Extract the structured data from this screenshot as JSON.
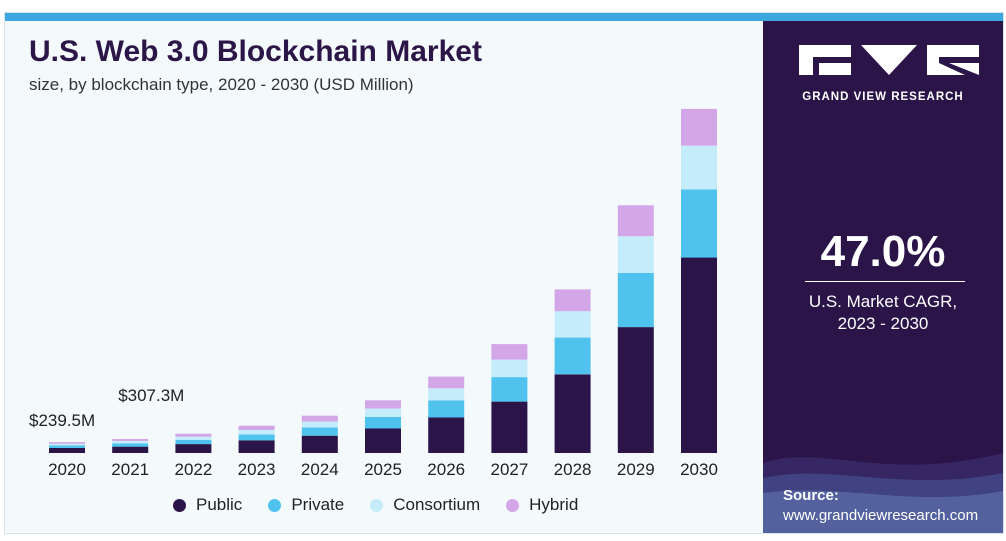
{
  "chart_data": {
    "type": "bar",
    "stacked": true,
    "title": "U.S. Web 3.0 Blockchain Market",
    "subtitle": "size, by blockchain type, 2020 - 2030 (USD Million)",
    "categories": [
      "2020",
      "2021",
      "2022",
      "2023",
      "2024",
      "2025",
      "2026",
      "2027",
      "2028",
      "2029",
      "2030"
    ],
    "series": [
      {
        "name": "Public",
        "color": "#2a1448",
        "values": [
          110,
          140,
          195,
          280,
          380,
          540,
          780,
          1130,
          1730,
          2770,
          4300
        ]
      },
      {
        "name": "Private",
        "color": "#4fc3ee",
        "values": [
          55,
          70,
          95,
          130,
          180,
          255,
          375,
          540,
          810,
          1190,
          1500
        ]
      },
      {
        "name": "Consortium",
        "color": "#c4ecfb",
        "values": [
          40,
          52,
          70,
          95,
          130,
          185,
          270,
          385,
          580,
          810,
          960
        ]
      },
      {
        "name": "Hybrid",
        "color": "#d3a6e8",
        "values": [
          35,
          45,
          65,
          95,
          130,
          180,
          255,
          340,
          480,
          680,
          810
        ]
      }
    ],
    "annotations": [
      {
        "category": "2020",
        "label": "$239.5M"
      },
      {
        "category": "2021",
        "label": "$307.3M"
      }
    ],
    "ylim": [
      0,
      7700
    ],
    "grid": false,
    "legend_position": "bottom"
  },
  "side_panel": {
    "brand": "GRAND VIEW RESEARCH",
    "cagr_value": "47.0%",
    "cagr_label_1": "U.S. Market CAGR,",
    "cagr_label_2": "2023 - 2030",
    "source_label": "Source:",
    "source_url": "www.grandviewresearch.com"
  },
  "colors": {
    "panel_bg": "#2a1448",
    "accent_bar": "#3ba7dd"
  }
}
